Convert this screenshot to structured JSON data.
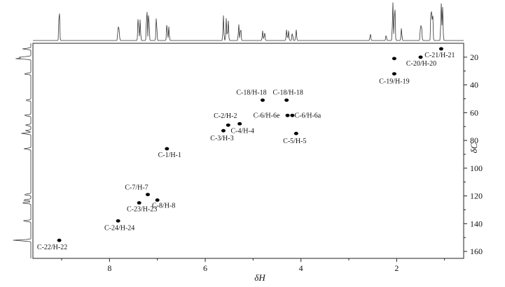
{
  "chart_data": {
    "type": "scatter",
    "title": "",
    "xlabel": "δH",
    "ylabel": "δC",
    "xlim": [
      9.6,
      0.6
    ],
    "ylim": [
      10,
      165
    ],
    "x_inverted": true,
    "y_inverted": true,
    "grid": false,
    "x_ticks": [
      8,
      6,
      4,
      2
    ],
    "y_ticks": [
      20,
      40,
      60,
      80,
      100,
      120,
      140,
      160
    ],
    "x_tick_labels": [
      "8",
      "6",
      "4",
      "2"
    ],
    "y_tick_labels": [
      "20",
      "40",
      "60",
      "80",
      "100",
      "120",
      "140",
      "160"
    ],
    "points": [
      {
        "label": "C-21/H-21",
        "x": 1.07,
        "y": 14
      },
      {
        "label": "C-20/H-20",
        "x": 1.5,
        "y": 20
      },
      {
        "label": "C-19/H-19",
        "x": 2.05,
        "y": 21
      },
      {
        "label": "",
        "x": 2.05,
        "y": 32
      },
      {
        "label": "C-18/H-18",
        "x": 4.8,
        "y": 51
      },
      {
        "label": "C-18/H-18",
        "x": 4.3,
        "y": 51
      },
      {
        "label": "C-6/H-6e",
        "x": 4.28,
        "y": 62
      },
      {
        "label": "C-6/H-6a",
        "x": 4.18,
        "y": 62
      },
      {
        "label": "C-2/H-2",
        "x": 5.52,
        "y": 69
      },
      {
        "label": "C-4/H-4",
        "x": 5.28,
        "y": 68
      },
      {
        "label": "C-3/H-3",
        "x": 5.62,
        "y": 73
      },
      {
        "label": "C-5/H-5",
        "x": 4.1,
        "y": 75
      },
      {
        "label": "C-1/H-1",
        "x": 6.8,
        "y": 86
      },
      {
        "label": "C-7/H-7",
        "x": 7.2,
        "y": 119
      },
      {
        "label": "C-23/H-23",
        "x": 7.38,
        "y": 125
      },
      {
        "label": "C-8/H-8",
        "x": 7.0,
        "y": 123
      },
      {
        "label": "C-24/H-24",
        "x": 7.82,
        "y": 138
      },
      {
        "label": "C-22/H-22",
        "x": 9.05,
        "y": 152
      }
    ]
  }
}
